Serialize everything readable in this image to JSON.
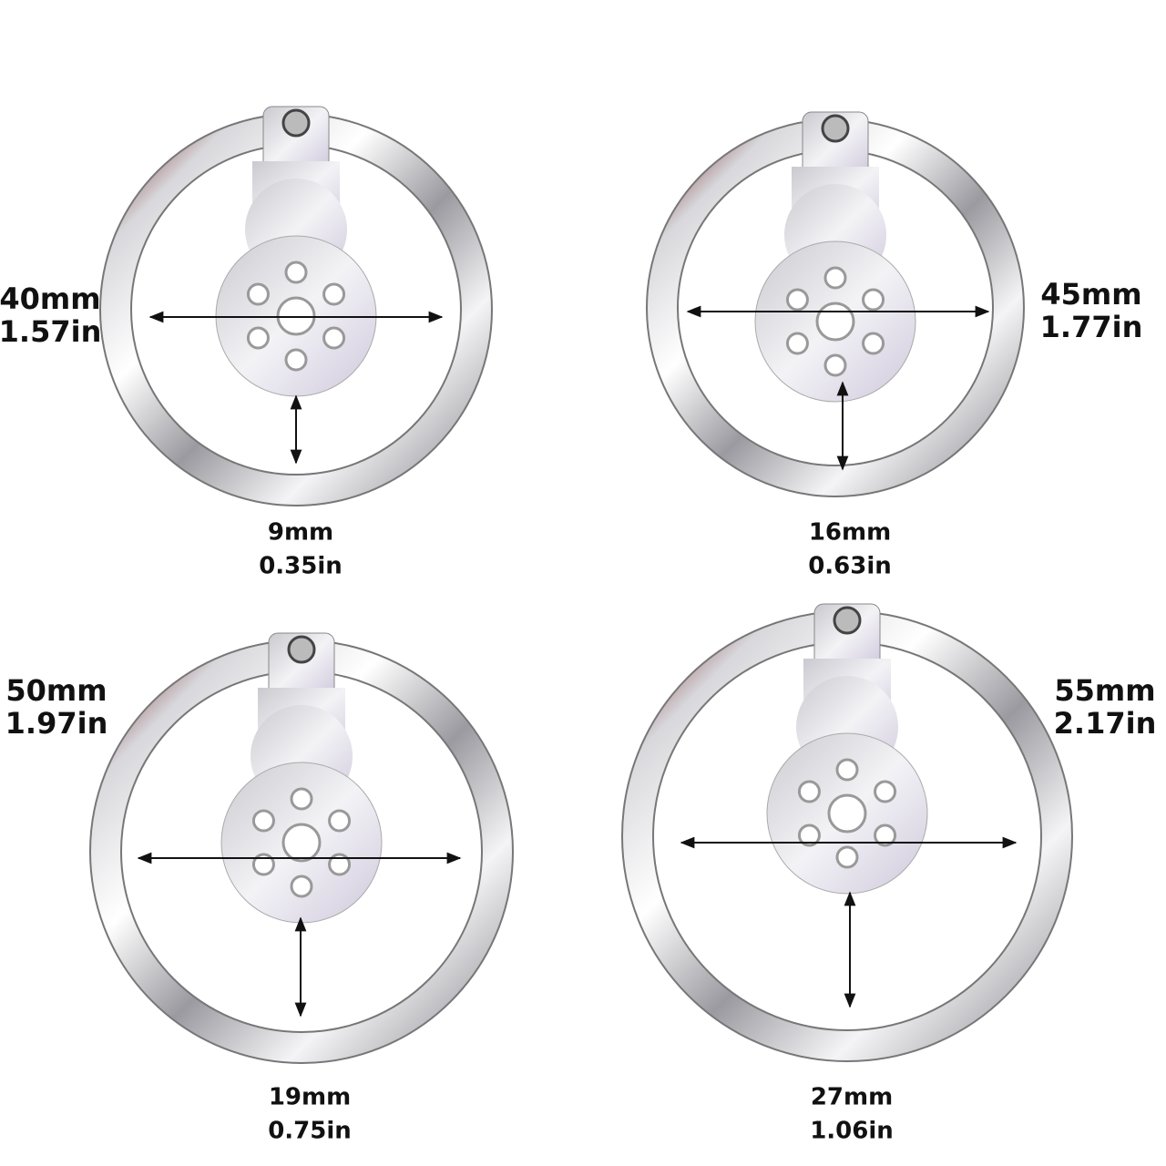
{
  "items": [
    {
      "diameter_mm": "40mm",
      "diameter_in": "1.57in",
      "gap_mm": "9mm",
      "gap_in": "0.35in"
    },
    {
      "diameter_mm": "45mm",
      "diameter_in": "1.77in",
      "gap_mm": "16mm",
      "gap_in": "0.63in"
    },
    {
      "diameter_mm": "50mm",
      "diameter_in": "1.97in",
      "gap_mm": "19mm",
      "gap_in": "0.75in"
    },
    {
      "diameter_mm": "55mm",
      "diameter_in": "2.17in",
      "gap_mm": "27mm",
      "gap_in": "1.06in"
    }
  ]
}
